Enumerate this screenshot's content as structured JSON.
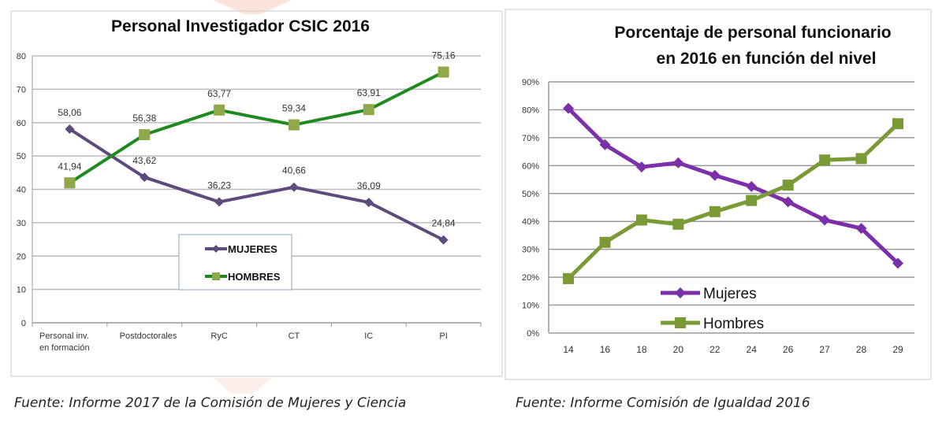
{
  "chart_data": [
    {
      "type": "line",
      "title": "Personal Investigador CSIC 2016",
      "categories": [
        "Personal inv. en formación",
        "Postdoctorales",
        "RyC",
        "CT",
        "IC",
        "PI"
      ],
      "category_lines": [
        [
          "Personal inv.",
          "en formación"
        ],
        [
          "Postdoctorales"
        ],
        [
          "RyC"
        ],
        [
          "CT"
        ],
        [
          "IC"
        ],
        [
          "PI"
        ]
      ],
      "ylim": [
        0,
        80
      ],
      "yticks": [
        0,
        10,
        20,
        30,
        40,
        50,
        60,
        70,
        80
      ],
      "grid": true,
      "legend": "center-bottom",
      "series": [
        {
          "name": "MUJERES",
          "color": "#5e4a7d",
          "marker": "diamond",
          "values": [
            58.06,
            43.62,
            36.23,
            40.66,
            36.09,
            24.84
          ],
          "labels": [
            "58,06",
            "43,62",
            "36,23",
            "40,66",
            "36,09",
            "24,84"
          ]
        },
        {
          "name": "HOMBRES",
          "color": "#1f8a1f",
          "marker_color": "#8fa84a",
          "marker": "square",
          "values": [
            41.94,
            56.38,
            63.77,
            59.34,
            63.91,
            75.16
          ],
          "labels": [
            "41,94",
            "56,38",
            "63,77",
            "59,34",
            "63,91",
            "75,16"
          ]
        }
      ],
      "source": "Fuente: Informe 2017 de la Comisión de Mujeres y Ciencia"
    },
    {
      "type": "line",
      "title": [
        "Porcentaje de personal funcionario",
        "en 2016 en función del nivel"
      ],
      "categories": [
        "14",
        "16",
        "18",
        "20",
        "22",
        "24",
        "26",
        "27",
        "28",
        "29"
      ],
      "ylim": [
        0,
        90
      ],
      "yticks": [
        "0%",
        "10%",
        "20%",
        "30%",
        "40%",
        "50%",
        "60%",
        "70%",
        "80%",
        "90%"
      ],
      "grid": true,
      "legend": "bottom-center",
      "series": [
        {
          "name": "Mujeres",
          "color": "#7b2fa8",
          "marker": "diamond",
          "values": [
            80.5,
            67.5,
            59.5,
            61,
            56.5,
            52.5,
            47,
            40.5,
            37.5,
            25
          ]
        },
        {
          "name": "Hombres",
          "color": "#7a9a35",
          "marker": "square",
          "values": [
            19.5,
            32.5,
            40.5,
            39,
            43.5,
            47.5,
            53,
            62,
            62.5,
            75
          ]
        }
      ],
      "source": "Fuente: Informe Comisión de Igualdad 2016"
    }
  ]
}
